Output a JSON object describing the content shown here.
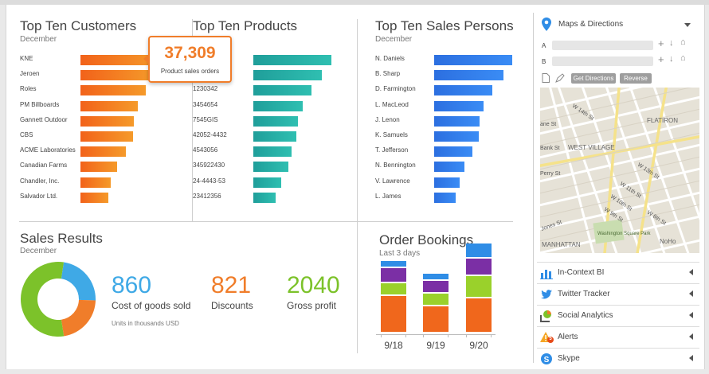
{
  "customers": {
    "title": "Top Ten Customers",
    "subtitle": "December",
    "items": [
      {
        "label": "KNE",
        "value": 1.0
      },
      {
        "label": "Jeroen",
        "value": 0.93
      },
      {
        "label": "Roles",
        "value": 0.84
      },
      {
        "label": "PM Billboards",
        "value": 0.73
      },
      {
        "label": "Gannett Outdoor",
        "value": 0.68
      },
      {
        "label": "CBS",
        "value": 0.67
      },
      {
        "label": "ACME Laboratories",
        "value": 0.58
      },
      {
        "label": "Canadian Farms",
        "value": 0.47
      },
      {
        "label": "Chandler, Inc.",
        "value": 0.39
      },
      {
        "label": "Salvador Ltd.",
        "value": 0.36
      }
    ],
    "callout": {
      "value": "37,309",
      "caption": "Product sales orders"
    }
  },
  "products": {
    "title": "Top Ten Products",
    "items": [
      {
        "label": "",
        "value": 1.0
      },
      {
        "label": "",
        "value": 0.88
      },
      {
        "label": "1230342",
        "value": 0.74
      },
      {
        "label": "3454654",
        "value": 0.63
      },
      {
        "label": "7545GIS",
        "value": 0.57
      },
      {
        "label": "42052-4432",
        "value": 0.55
      },
      {
        "label": "4543056",
        "value": 0.49
      },
      {
        "label": "345922430",
        "value": 0.45
      },
      {
        "label": "24-4443-53",
        "value": 0.36
      },
      {
        "label": "23412356",
        "value": 0.29
      }
    ]
  },
  "salespersons": {
    "title": "Top Ten Sales Persons",
    "subtitle": "December",
    "items": [
      {
        "label": "N. Daniels",
        "value": 1.0
      },
      {
        "label": "B. Sharp",
        "value": 0.89
      },
      {
        "label": "D. Farmington",
        "value": 0.74
      },
      {
        "label": "L. MacLeod",
        "value": 0.63
      },
      {
        "label": "J. Lenon",
        "value": 0.58
      },
      {
        "label": "K. Samuels",
        "value": 0.57
      },
      {
        "label": "T. Jefferson",
        "value": 0.49
      },
      {
        "label": "N. Bennington",
        "value": 0.39
      },
      {
        "label": "V. Lawrence",
        "value": 0.33
      },
      {
        "label": "L. James",
        "value": 0.28
      }
    ]
  },
  "sales_results": {
    "title": "Sales Results",
    "subtitle": "December",
    "note": "Units in thousands USD",
    "metrics": [
      {
        "value": "860",
        "label": "Cost of goods sold",
        "color": "#3fa9e6"
      },
      {
        "value": "821",
        "label": "Discounts",
        "color": "#f07d2a"
      },
      {
        "value": "2040",
        "label": "Gross profit",
        "color": "#7cc22a"
      }
    ],
    "donut": [
      {
        "value": 860,
        "color": "#3fa9e6"
      },
      {
        "value": 821,
        "color": "#f07d2a"
      },
      {
        "value": 2040,
        "color": "#7cc22a"
      }
    ]
  },
  "order_bookings": {
    "title": "Order Bookings",
    "subtitle": "Last 3 days",
    "dates": [
      "9/18",
      "9/19",
      "9/20"
    ],
    "colors": [
      "#f0671c",
      "#9ad12b",
      "#7b2fa5",
      "#2f8de6"
    ],
    "stacks": [
      [
        15,
        5,
        6,
        3
      ],
      [
        11,
        5,
        5,
        3
      ],
      [
        14,
        9,
        7,
        6
      ]
    ]
  },
  "maps": {
    "title": "Maps & Directions",
    "label_a": "A",
    "label_b": "B",
    "get_directions": "Get Directions",
    "reverse": "Reverse",
    "map_labels": {
      "flatiron": "FLATIRON",
      "west_village": "WEST VILLAGE",
      "manhattan": "MANHATTAN",
      "nolo": "NoHo",
      "washington": "Washington Square Park",
      "w14": "W 14th St",
      "w13": "W 13th St",
      "w11": "W 11th St",
      "w10": "W 10th St",
      "w9": "W 9th St",
      "w8": "W 8th St",
      "bank": "Bank St",
      "perry": "Perry St",
      "jones": "Jones St",
      "ane": "ane St"
    }
  },
  "sidebar_items": [
    {
      "label": "In-Context BI",
      "icon": "chart-icon"
    },
    {
      "label": "Twitter Tracker",
      "icon": "twitter-icon"
    },
    {
      "label": "Social Analytics",
      "icon": "social-analytics-icon"
    },
    {
      "label": "Alerts",
      "icon": "alert-icon",
      "badge": "5"
    },
    {
      "label": "Skype",
      "icon": "skype-icon"
    }
  ]
}
